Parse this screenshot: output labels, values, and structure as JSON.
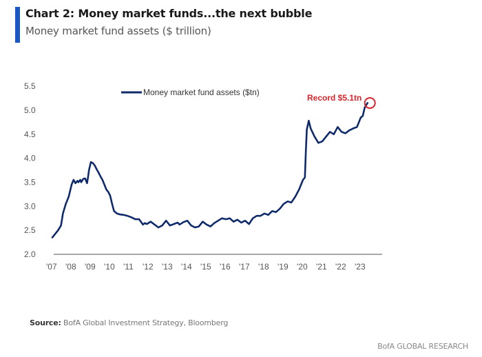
{
  "header": {
    "title": "Chart 2: Money market funds...the next bubble",
    "subtitle": "Money market fund assets ($ trillion)"
  },
  "footer": {
    "source_label": "Source:",
    "source_text": "BofA Global Investment Strategy, Bloomberg",
    "brand": "BofA GLOBAL RESEARCH"
  },
  "colors": {
    "accent": "#1a56c4",
    "series": "#0f2a6b",
    "annotation": "#d9252b",
    "axis": "#8c8c8c"
  },
  "chart_data": {
    "type": "line",
    "title": "Chart 2: Money market funds...the next bubble",
    "subtitle": "Money market fund assets ($ trillion)",
    "xlabel": "",
    "ylabel": "",
    "ylim": [
      2.0,
      5.5
    ],
    "xlim": [
      2007,
      2024
    ],
    "yticks": [
      "2.0",
      "2.5",
      "3.0",
      "3.5",
      "4.0",
      "4.5",
      "5.0",
      "5.5"
    ],
    "ytick_values": [
      2.0,
      2.5,
      3.0,
      3.5,
      4.0,
      4.5,
      5.0,
      5.5
    ],
    "xticks": [
      "'07",
      "'08",
      "'09",
      "'10",
      "'11",
      "'12",
      "'13",
      "'14",
      "'15",
      "'16",
      "'17",
      "'18",
      "'19",
      "'20",
      "'21",
      "'22",
      "'23"
    ],
    "xtick_values": [
      2007,
      2008,
      2009,
      2010,
      2011,
      2012,
      2013,
      2014,
      2015,
      2016,
      2017,
      2018,
      2019,
      2020,
      2021,
      2022,
      2023
    ],
    "grid": false,
    "legend": {
      "position": "top-center",
      "entries": [
        "Money market fund assets ($tn)"
      ]
    },
    "annotations": [
      {
        "text": "Record $5.1tn",
        "x": 2023.4,
        "y": 5.15
      }
    ],
    "series": [
      {
        "name": "Money market fund assets ($tn)",
        "x": [
          2007.0,
          2007.1,
          2007.2,
          2007.3,
          2007.45,
          2007.55,
          2007.7,
          2007.85,
          2008.0,
          2008.1,
          2008.2,
          2008.3,
          2008.35,
          2008.45,
          2008.5,
          2008.6,
          2008.7,
          2008.8,
          2008.85,
          2008.9,
          2009.0,
          2009.1,
          2009.2,
          2009.3,
          2009.4,
          2009.5,
          2009.6,
          2009.7,
          2009.8,
          2009.9,
          2010.0,
          2010.1,
          2010.2,
          2010.35,
          2010.5,
          2010.7,
          2010.9,
          2011.1,
          2011.3,
          2011.5,
          2011.7,
          2011.8,
          2011.9,
          2012.1,
          2012.3,
          2012.5,
          2012.7,
          2012.9,
          2013.1,
          2013.3,
          2013.5,
          2013.6,
          2013.8,
          2014.0,
          2014.2,
          2014.4,
          2014.6,
          2014.8,
          2015.0,
          2015.2,
          2015.4,
          2015.6,
          2015.8,
          2016.0,
          2016.2,
          2016.4,
          2016.6,
          2016.8,
          2017.0,
          2017.2,
          2017.4,
          2017.6,
          2017.8,
          2018.0,
          2018.2,
          2018.4,
          2018.6,
          2018.8,
          2019.0,
          2019.2,
          2019.4,
          2019.6,
          2019.8,
          2020.0,
          2020.1,
          2020.15,
          2020.2,
          2020.3,
          2020.4,
          2020.6,
          2020.8,
          2021.0,
          2021.2,
          2021.4,
          2021.6,
          2021.8,
          2022.0,
          2022.2,
          2022.4,
          2022.6,
          2022.8,
          2023.0,
          2023.1,
          2023.2,
          2023.3,
          2023.35
        ],
        "values": [
          2.35,
          2.4,
          2.45,
          2.5,
          2.6,
          2.85,
          3.05,
          3.2,
          3.45,
          3.55,
          3.48,
          3.53,
          3.5,
          3.55,
          3.5,
          3.57,
          3.58,
          3.48,
          3.6,
          3.75,
          3.92,
          3.9,
          3.85,
          3.77,
          3.7,
          3.62,
          3.55,
          3.45,
          3.35,
          3.3,
          3.22,
          3.05,
          2.9,
          2.85,
          2.83,
          2.82,
          2.8,
          2.77,
          2.73,
          2.73,
          2.62,
          2.65,
          2.63,
          2.68,
          2.62,
          2.56,
          2.6,
          2.7,
          2.6,
          2.63,
          2.66,
          2.62,
          2.67,
          2.7,
          2.6,
          2.56,
          2.58,
          2.68,
          2.62,
          2.58,
          2.65,
          2.7,
          2.75,
          2.73,
          2.75,
          2.68,
          2.72,
          2.66,
          2.7,
          2.63,
          2.75,
          2.8,
          2.8,
          2.85,
          2.82,
          2.9,
          2.88,
          2.95,
          3.05,
          3.1,
          3.08,
          3.2,
          3.35,
          3.55,
          3.6,
          4.15,
          4.6,
          4.78,
          4.62,
          4.45,
          4.32,
          4.35,
          4.45,
          4.55,
          4.5,
          4.65,
          4.55,
          4.52,
          4.58,
          4.62,
          4.65,
          4.85,
          4.88,
          5.05,
          5.12,
          5.15
        ]
      }
    ]
  }
}
